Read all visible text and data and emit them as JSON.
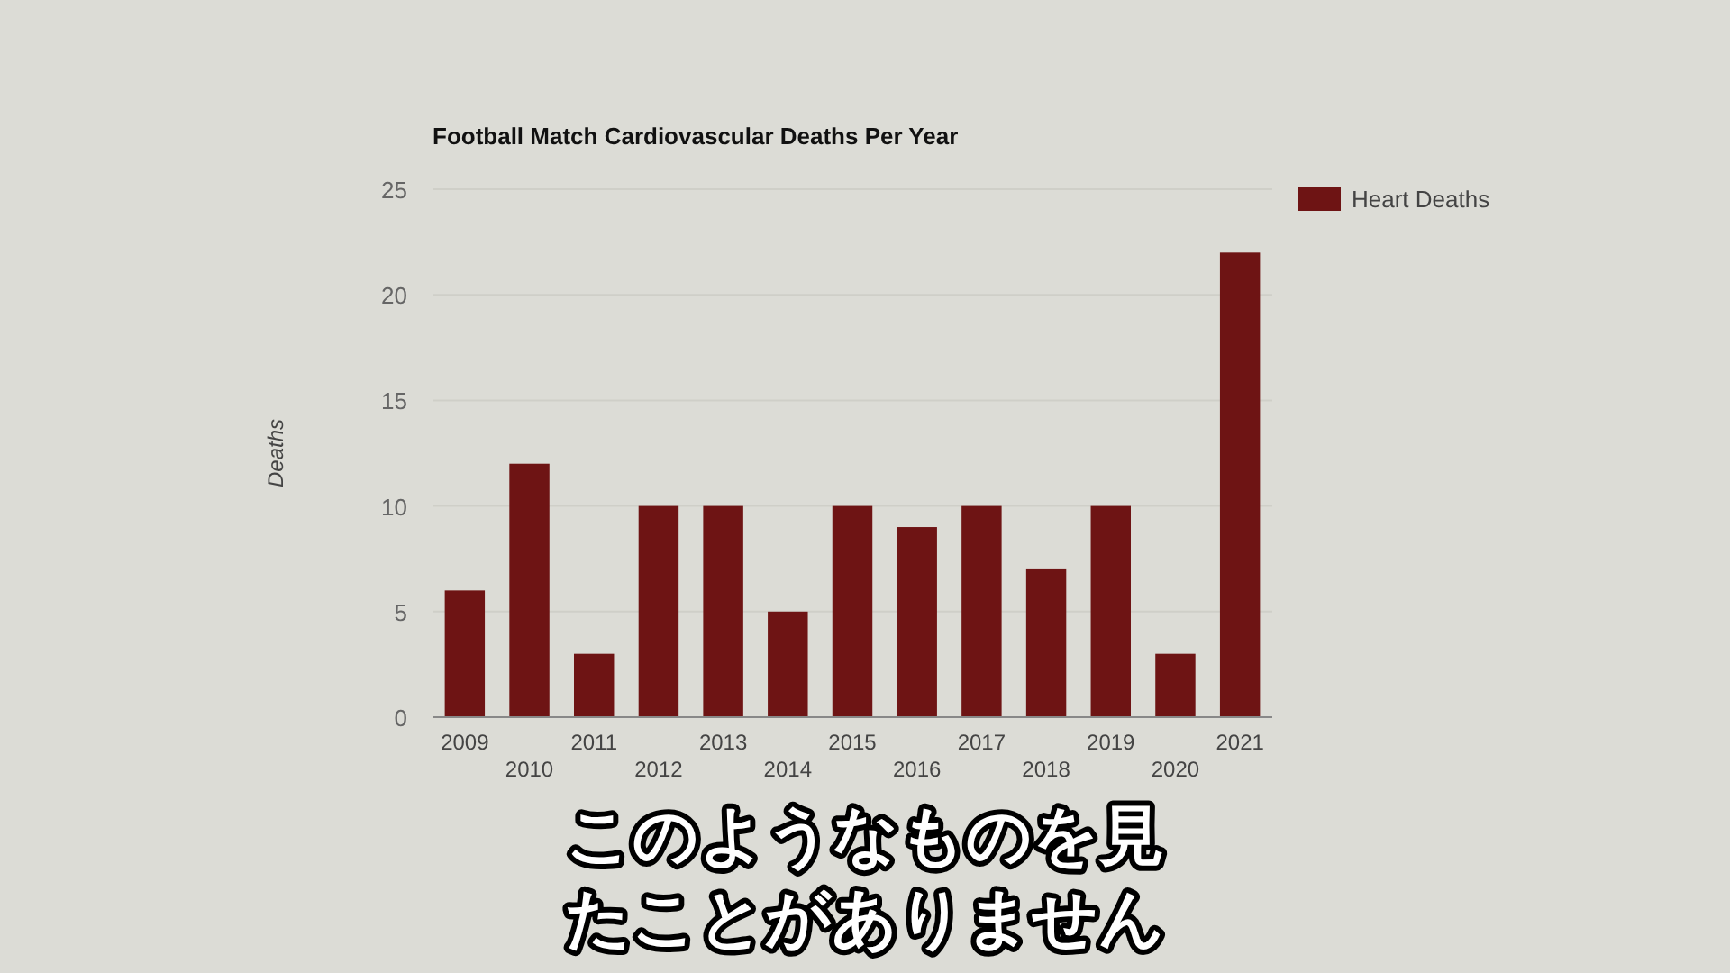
{
  "chart_data": {
    "type": "bar",
    "title": "Football Match Cardiovascular Deaths Per Year",
    "ylabel": "Deaths",
    "categories": [
      "2009",
      "2010",
      "2011",
      "2012",
      "2013",
      "2014",
      "2015",
      "2016",
      "2017",
      "2018",
      "2019",
      "2020",
      "2021"
    ],
    "series": [
      {
        "name": "Heart Deaths",
        "color": "#6e1414",
        "values": [
          6,
          12,
          3,
          10,
          10,
          5,
          10,
          9,
          10,
          7,
          10,
          3,
          22
        ]
      }
    ],
    "ylim": [
      0,
      25
    ],
    "yticks": [
      0,
      5,
      10,
      15,
      20,
      25
    ],
    "grid": "y",
    "legend": "top right",
    "annotations": [
      "このようなものを見",
      "たことがありません"
    ]
  }
}
